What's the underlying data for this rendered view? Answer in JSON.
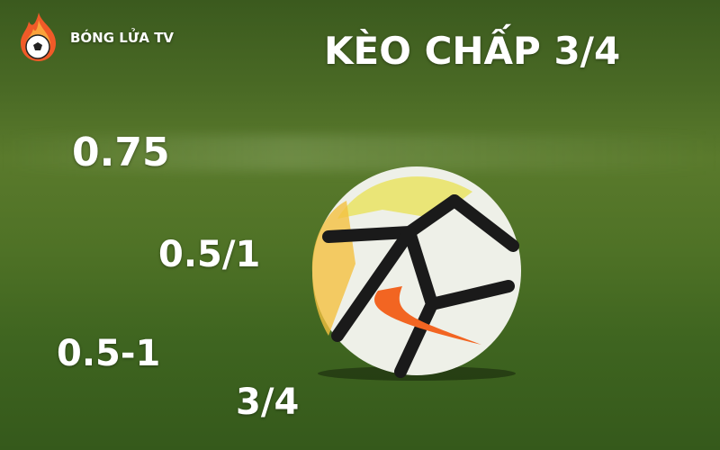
{
  "brand": {
    "name": "BÓNG LỬA TV",
    "logo_icon": "flame-soccer-ball-icon"
  },
  "title": "KÈO CHẤP 3/4",
  "handicap_labels": [
    "0.75",
    "0.5/1",
    "0.5-1",
    "3/4"
  ],
  "colors": {
    "text": "#ffffff",
    "grass": "#4a6a25",
    "flame": "#f05a28"
  }
}
